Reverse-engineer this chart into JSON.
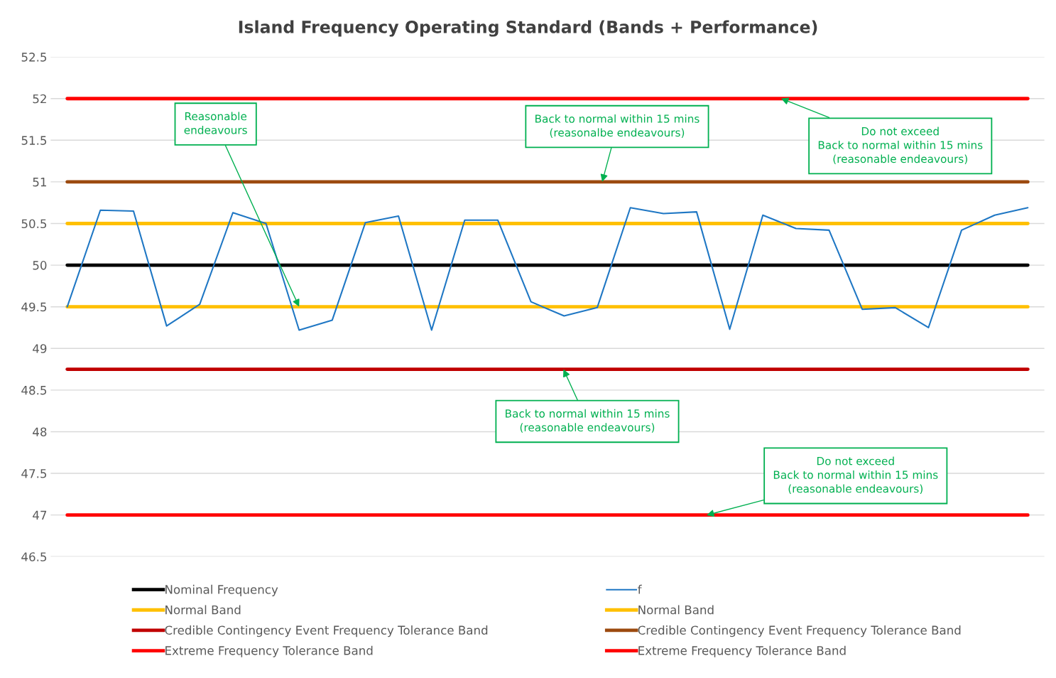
{
  "chart_data": {
    "type": "line",
    "title": "Island Frequency Operating Standard (Bands + Performance)",
    "categories": [
      null,
      null,
      null,
      null,
      null,
      null,
      null,
      null,
      null,
      null,
      null,
      null,
      null,
      null,
      null,
      null,
      null,
      null,
      null,
      null,
      null,
      null,
      null,
      null,
      null,
      null,
      null,
      null,
      null,
      null
    ],
    "series": [
      {
        "name": "Nominal Frequency",
        "color": "#000000",
        "values": [
          50,
          50,
          50,
          50,
          50,
          50,
          50,
          50,
          50,
          50,
          50,
          50,
          50,
          50,
          50,
          50,
          50,
          50,
          50,
          50,
          50,
          50,
          50,
          50,
          50,
          50,
          50,
          50,
          50,
          50
        ]
      },
      {
        "name": "Normal Band",
        "color": "#ffc000",
        "values": [
          49.5,
          49.5,
          49.5,
          49.5,
          49.5,
          49.5,
          49.5,
          49.5,
          49.5,
          49.5,
          49.5,
          49.5,
          49.5,
          49.5,
          49.5,
          49.5,
          49.5,
          49.5,
          49.5,
          49.5,
          49.5,
          49.5,
          49.5,
          49.5,
          49.5,
          49.5,
          49.5,
          49.5,
          49.5,
          49.5
        ]
      },
      {
        "name": "Credible Contingency Event Frequency Tolerance Band",
        "color": "#c00000",
        "values": [
          48.75,
          48.75,
          48.75,
          48.75,
          48.75,
          48.75,
          48.75,
          48.75,
          48.75,
          48.75,
          48.75,
          48.75,
          48.75,
          48.75,
          48.75,
          48.75,
          48.75,
          48.75,
          48.75,
          48.75,
          48.75,
          48.75,
          48.75,
          48.75,
          48.75,
          48.75,
          48.75,
          48.75,
          48.75,
          48.75
        ]
      },
      {
        "name": "Extreme Frequency Tolerance Band",
        "color": "#ff0000",
        "values": [
          47,
          47,
          47,
          47,
          47,
          47,
          47,
          47,
          47,
          47,
          47,
          47,
          47,
          47,
          47,
          47,
          47,
          47,
          47,
          47,
          47,
          47,
          47,
          47,
          47,
          47,
          47,
          47,
          47,
          47
        ]
      },
      {
        "name": "f",
        "color": "#1f77c4",
        "values": [
          49.5,
          50.66,
          50.65,
          49.27,
          49.53,
          50.63,
          50.5,
          49.22,
          49.34,
          50.51,
          50.59,
          49.22,
          50.54,
          50.54,
          49.56,
          49.39,
          49.49,
          50.69,
          50.62,
          50.64,
          49.23,
          50.6,
          50.44,
          50.42,
          49.47,
          49.49,
          49.25,
          50.42,
          50.6,
          50.69
        ]
      },
      {
        "name": "Normal Band",
        "color": "#ffc000",
        "values": [
          50.5,
          50.5,
          50.5,
          50.5,
          50.5,
          50.5,
          50.5,
          50.5,
          50.5,
          50.5,
          50.5,
          50.5,
          50.5,
          50.5,
          50.5,
          50.5,
          50.5,
          50.5,
          50.5,
          50.5,
          50.5,
          50.5,
          50.5,
          50.5,
          50.5,
          50.5,
          50.5,
          50.5,
          50.5,
          50.5
        ]
      },
      {
        "name": "Credible Contingency Event Frequency Tolerance Band",
        "color": "#9c4a0f",
        "values": [
          51,
          51,
          51,
          51,
          51,
          51,
          51,
          51,
          51,
          51,
          51,
          51,
          51,
          51,
          51,
          51,
          51,
          51,
          51,
          51,
          51,
          51,
          51,
          51,
          51,
          51,
          51,
          51,
          51,
          51
        ]
      },
      {
        "name": "Extreme Frequency Tolerance Band",
        "color": "#ff0000",
        "values": [
          52,
          52,
          52,
          52,
          52,
          52,
          52,
          52,
          52,
          52,
          52,
          52,
          52,
          52,
          52,
          52,
          52,
          52,
          52,
          52,
          52,
          52,
          52,
          52,
          52,
          52,
          52,
          52,
          52,
          52
        ]
      }
    ],
    "ylim": [
      46.5,
      52.5
    ],
    "yticks": [
      46.5,
      47,
      47.5,
      48,
      48.5,
      49,
      49.5,
      50,
      50.5,
      51,
      51.5,
      52,
      52.5
    ],
    "grid": "y",
    "legend": "bottom",
    "tick_labels": "y",
    "marker": "none",
    "annotations": [
      "Reasonable\nendeavours",
      "Back to normal within 15 mins\n(reasonalbe endeavours)",
      "Do not exceed\nBack to normal within 15 mins\n(reasonable endeavours)",
      "Back to normal within 15 mins\n(reasonable endeavours)",
      "Do not exceed\nBack to normal within 15 mins\n(reasonable endeavours)"
    ]
  }
}
